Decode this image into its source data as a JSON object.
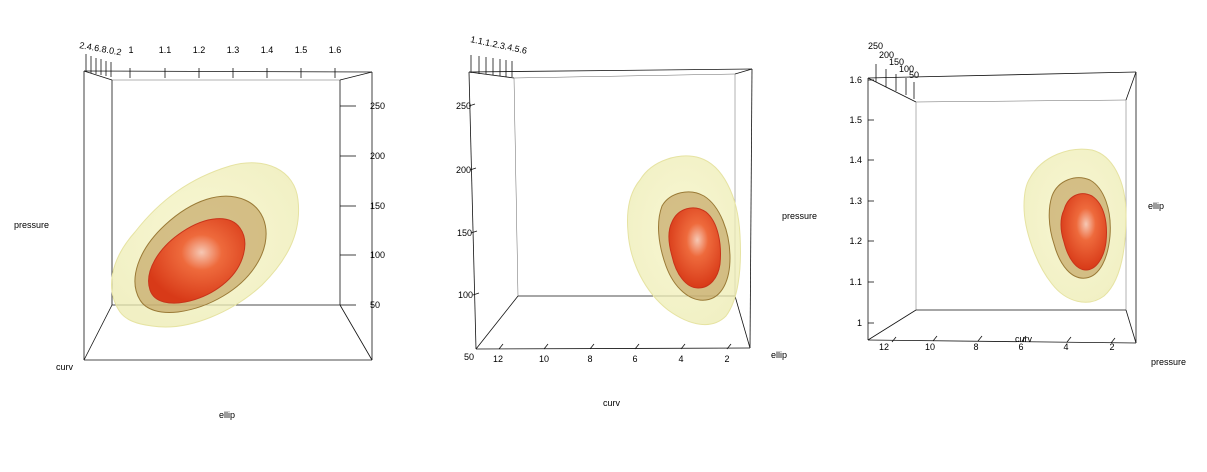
{
  "chart_data": [
    {
      "type": "3d-density-contour",
      "axes": {
        "pressure": {
          "label": "pressure",
          "ticks": [
            "50",
            "100",
            "150",
            "200",
            "250"
          ]
        },
        "ellip": {
          "label": "ellip",
          "ticks": [
            "1",
            "1.1",
            "1.2",
            "1.3",
            "1.4",
            "1.5",
            "1.6"
          ]
        },
        "curv": {
          "label": "curv",
          "ticks": [
            "2",
            "4",
            "6",
            "8",
            "10",
            "12"
          ],
          "tick_text": "2.4.6.8.0.2"
        }
      },
      "contour_levels": [
        {
          "shell": "outer",
          "color": "#f2f0b4",
          "opacity": 0.55
        },
        {
          "shell": "middle",
          "color": "#b48a3c",
          "opacity": 0.6
        },
        {
          "shell": "inner",
          "color": "#e8461e",
          "opacity": 1.0
        }
      ]
    },
    {
      "type": "3d-density-contour",
      "axes": {
        "pressure": {
          "label": "pressure",
          "ticks": [
            "50",
            "100",
            "150",
            "200",
            "250"
          ]
        },
        "ellip": {
          "label": "ellip",
          "ticks": [
            "1",
            "1.1",
            "1.2",
            "1.3",
            "1.4",
            "1.5",
            "1.6"
          ],
          "tick_text": "1.1.1.2.3.4.5.6"
        },
        "curv": {
          "label": "curv",
          "ticks": [
            "12",
            "10",
            "8",
            "6",
            "4",
            "2"
          ]
        }
      },
      "contour_levels": [
        {
          "shell": "outer",
          "color": "#f2f0b4",
          "opacity": 0.55
        },
        {
          "shell": "middle",
          "color": "#b48a3c",
          "opacity": 0.6
        },
        {
          "shell": "inner",
          "color": "#e8461e",
          "opacity": 1.0
        }
      ]
    },
    {
      "type": "3d-density-contour",
      "axes": {
        "pressure": {
          "label": "pressure",
          "ticks": [
            "250",
            "200",
            "150",
            "100",
            "50"
          ]
        },
        "ellip": {
          "label": "ellip",
          "ticks": [
            "1",
            "1.1",
            "1.2",
            "1.3",
            "1.4",
            "1.5",
            "1.6"
          ]
        },
        "curv": {
          "label": "curv",
          "ticks": [
            "12",
            "10",
            "8",
            "6",
            "4",
            "2"
          ]
        }
      },
      "contour_levels": [
        {
          "shell": "outer",
          "color": "#f2f0b4",
          "opacity": 0.55
        },
        {
          "shell": "middle",
          "color": "#b48a3c",
          "opacity": 0.6
        },
        {
          "shell": "inner",
          "color": "#e8461e",
          "opacity": 1.0
        }
      ]
    }
  ]
}
